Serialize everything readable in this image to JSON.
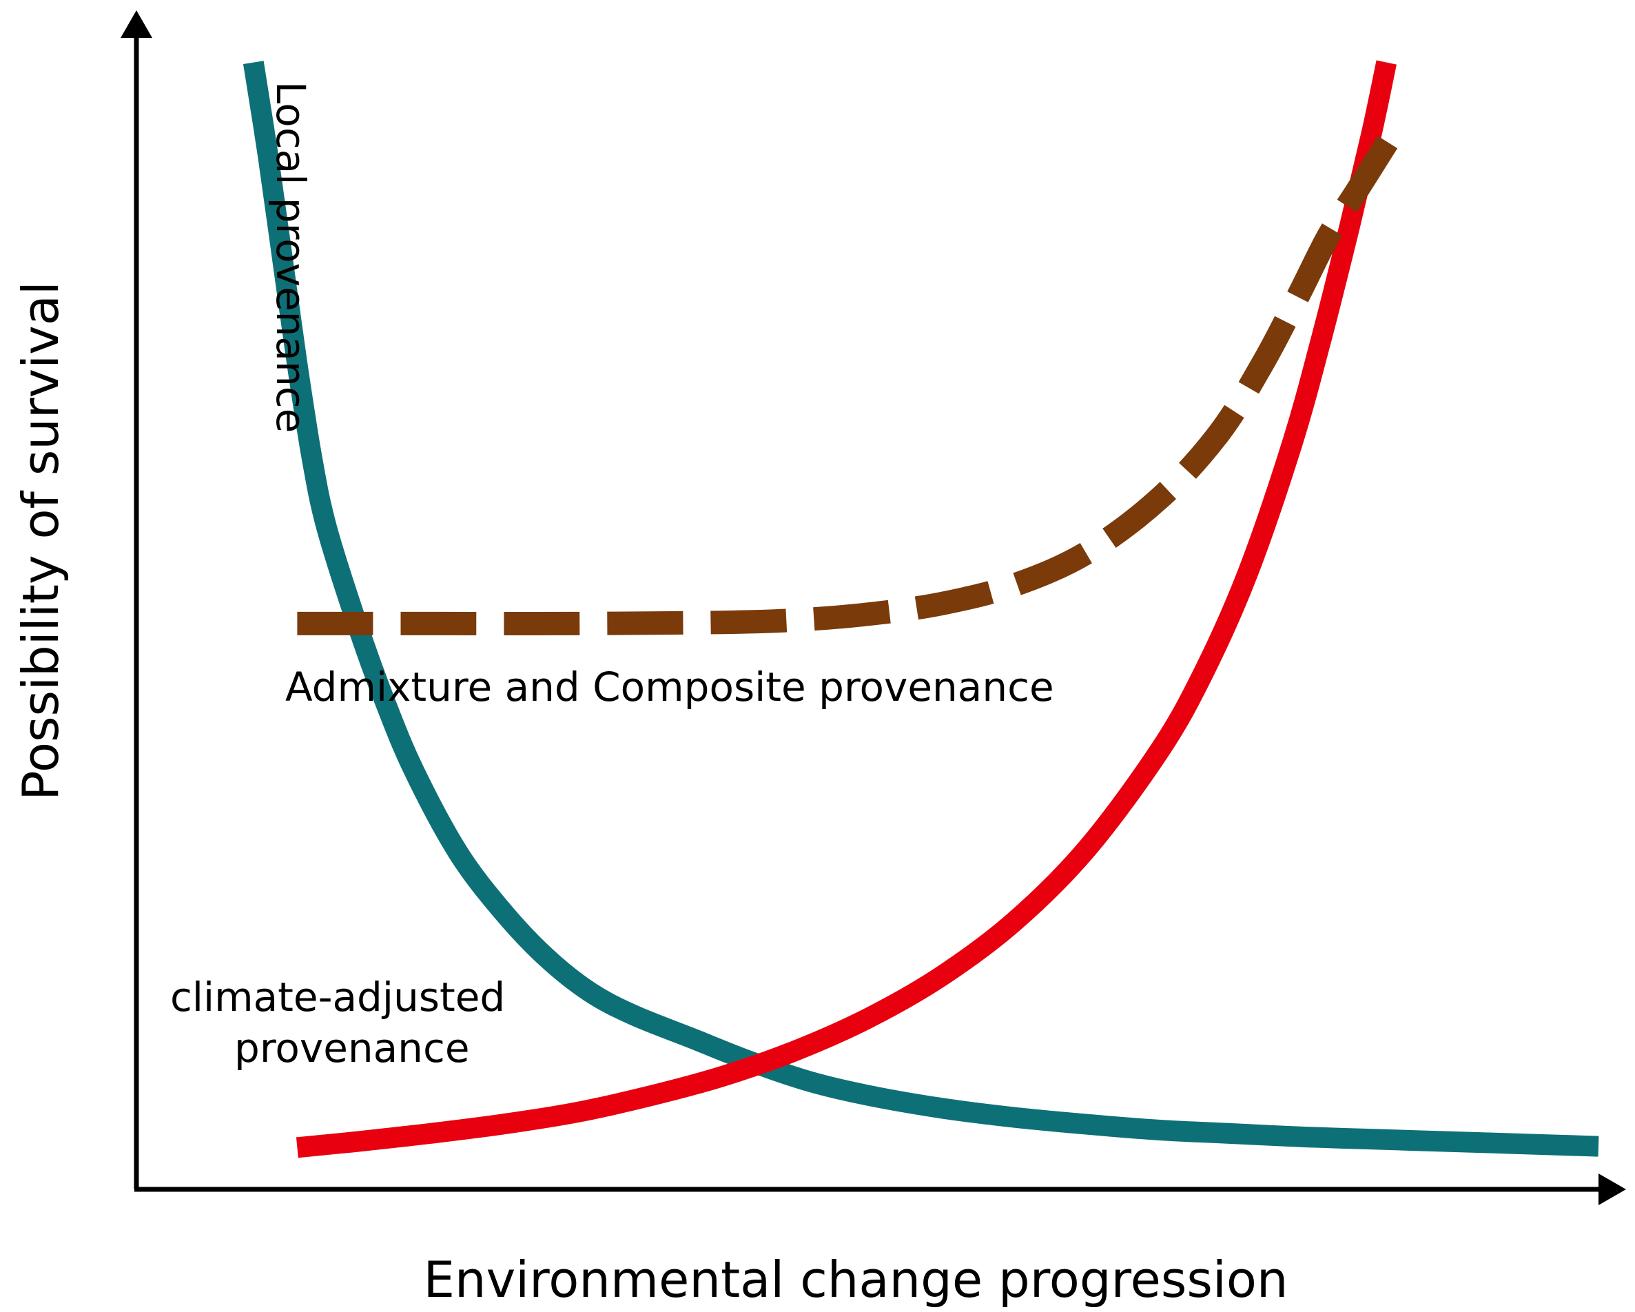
{
  "chart_data": {
    "type": "line",
    "title": "",
    "xlabel": "Environmental change progression",
    "ylabel": "Possibility of survival",
    "xlim": [
      0,
      100
    ],
    "ylim": [
      0,
      100
    ],
    "grid": false,
    "axis_ticks": false,
    "series": [
      {
        "name": "Local provenance",
        "label_lines": [
          "Local provenance"
        ],
        "color": "#0e7077",
        "style": "solid",
        "points": [
          [
            8,
            97
          ],
          [
            9,
            89
          ],
          [
            10,
            80
          ],
          [
            11,
            71
          ],
          [
            12,
            63
          ],
          [
            13,
            57
          ],
          [
            15,
            49
          ],
          [
            17,
            42
          ],
          [
            19,
            36
          ],
          [
            22,
            29
          ],
          [
            25,
            24
          ],
          [
            28,
            20
          ],
          [
            31,
            17
          ],
          [
            34,
            15
          ],
          [
            38,
            13
          ],
          [
            42,
            11
          ],
          [
            46,
            9.3
          ],
          [
            50,
            8.1
          ],
          [
            55,
            7
          ],
          [
            60,
            6.2
          ],
          [
            65,
            5.6
          ],
          [
            70,
            5.1
          ],
          [
            75,
            4.8
          ],
          [
            80,
            4.5
          ],
          [
            85,
            4.3
          ],
          [
            90,
            4.1
          ],
          [
            95,
            3.9
          ],
          [
            100,
            3.7
          ]
        ]
      },
      {
        "name": "climate-adjusted provenance",
        "label_lines": [
          "climate-adjusted",
          "provenance"
        ],
        "color": "#e8000f",
        "style": "solid",
        "points": [
          [
            11,
            3.6
          ],
          [
            15,
            4.1
          ],
          [
            20,
            4.8
          ],
          [
            25,
            5.6
          ],
          [
            30,
            6.6
          ],
          [
            35,
            8
          ],
          [
            40,
            9.7
          ],
          [
            45,
            11.9
          ],
          [
            50,
            14.7
          ],
          [
            55,
            18.3
          ],
          [
            60,
            23
          ],
          [
            65,
            29.3
          ],
          [
            70,
            37.8
          ],
          [
            73,
            44.5
          ],
          [
            76,
            53
          ],
          [
            79,
            64
          ],
          [
            81,
            73
          ],
          [
            83,
            83
          ],
          [
            84.5,
            91
          ],
          [
            85.5,
            97
          ]
        ]
      },
      {
        "name": "Admixture and Composite provenance",
        "label_lines": [
          "Admixture and Composite provenance"
        ],
        "color": "#7a3a0a",
        "style": "dashed",
        "points": [
          [
            11,
            48.7
          ],
          [
            20,
            48.7
          ],
          [
            30,
            48.7
          ],
          [
            40,
            48.8
          ],
          [
            45,
            49
          ],
          [
            50,
            49.5
          ],
          [
            55,
            50.4
          ],
          [
            60,
            52
          ],
          [
            65,
            54.8
          ],
          [
            70,
            59.5
          ],
          [
            74,
            65
          ],
          [
            77,
            71
          ],
          [
            79.5,
            77
          ],
          [
            81.5,
            82
          ],
          [
            83.5,
            86
          ],
          [
            85,
            89
          ],
          [
            86,
            91
          ]
        ]
      }
    ]
  }
}
